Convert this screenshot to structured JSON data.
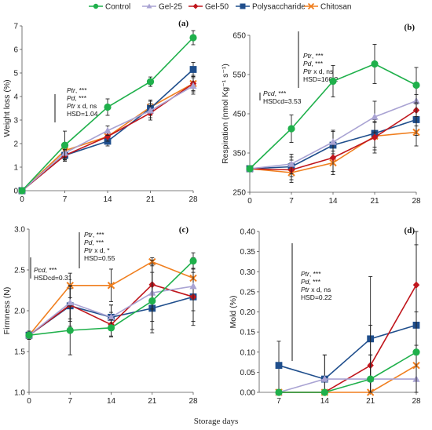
{
  "colors": {
    "Control": "#1fb04b",
    "Gel-25": "#a9a3d3",
    "Gel-50": "#c0161c",
    "Polysaccharide": "#1f4e8c",
    "Chitosan": "#f07f1f"
  },
  "legend": [
    "Control",
    "Gel-25",
    "Gel-50",
    "Polysaccharide",
    "Chitosan"
  ],
  "x_axis_title": "Storage days",
  "chart_data": [
    {
      "panel": "(a)",
      "type": "line",
      "ylabel": "Weight loss (%)",
      "x": [
        0,
        7,
        14,
        21,
        28
      ],
      "xticks": [
        "0",
        "7",
        "14",
        "21",
        "28"
      ],
      "ylim": [
        0,
        7
      ],
      "yticks": [
        "0",
        "1",
        "2",
        "3",
        "4",
        "5",
        "6",
        "7"
      ],
      "series": [
        {
          "name": "Control",
          "values": [
            0,
            1.93,
            3.55,
            4.63,
            6.5
          ],
          "err": [
            0,
            0.6,
            0.35,
            0.2,
            0.3
          ]
        },
        {
          "name": "Gel-25",
          "values": [
            0,
            1.6,
            2.55,
            3.4,
            4.45
          ],
          "err": [
            0,
            0.2,
            0.2,
            0.3,
            0.35
          ]
        },
        {
          "name": "Gel-50",
          "values": [
            0,
            1.5,
            2.3,
            3.3,
            4.55
          ],
          "err": [
            0,
            0.2,
            0.2,
            0.3,
            0.35
          ]
        },
        {
          "name": "Polysaccharide",
          "values": [
            0,
            1.5,
            2.1,
            3.5,
            5.15
          ],
          "err": [
            0,
            0.25,
            0.2,
            0.3,
            0.3
          ]
        },
        {
          "name": "Chitosan",
          "values": [
            0,
            1.7,
            2.3,
            3.55,
            4.55
          ],
          "err": [
            0,
            0.25,
            0.2,
            0.3,
            0.3
          ]
        }
      ],
      "annotations": [
        {
          "lines": [
            "Ptr, ***",
            "Pd, ***",
            "Ptr x d, ns",
            "HSD=1.04"
          ]
        }
      ]
    },
    {
      "panel": "(b)",
      "type": "line",
      "ylabel": "Respiration (nmol Kg⁻¹ s⁻¹)",
      "x": [
        0,
        7,
        14,
        21,
        28
      ],
      "xticks": [
        "0",
        "7",
        "14",
        "21",
        "28"
      ],
      "ylim": [
        250,
        650
      ],
      "yticks": [
        "250",
        "350",
        "450",
        "550",
        "650"
      ],
      "series": [
        {
          "name": "Control",
          "values": [
            310,
            412,
            533,
            577,
            523
          ],
          "err": [
            0,
            35,
            40,
            50,
            45
          ]
        },
        {
          "name": "Gel-25",
          "values": [
            310,
            322,
            378,
            442,
            483
          ],
          "err": [
            0,
            25,
            30,
            40,
            40
          ]
        },
        {
          "name": "Gel-50",
          "values": [
            310,
            307,
            338,
            390,
            459
          ],
          "err": [
            0,
            25,
            35,
            40,
            40
          ]
        },
        {
          "name": "Polysaccharide",
          "values": [
            310,
            315,
            370,
            400,
            435
          ],
          "err": [
            0,
            25,
            35,
            35,
            40
          ]
        },
        {
          "name": "Chitosan",
          "values": [
            310,
            300,
            325,
            393,
            403
          ],
          "err": [
            0,
            25,
            30,
            35,
            35
          ]
        }
      ],
      "annotations": [
        {
          "lines": [
            "Pcd, ***",
            "HSDcd=3.53"
          ]
        },
        {
          "lines": [
            "Ptr, ***",
            "Pd, ***",
            "Ptr x d, ns",
            "HSD=166.2"
          ]
        }
      ]
    },
    {
      "panel": "(c)",
      "type": "line",
      "ylabel": "Firmness (N)",
      "x": [
        0,
        7,
        14,
        21,
        28
      ],
      "xticks": [
        "0",
        "7",
        "14",
        "21",
        "28"
      ],
      "ylim": [
        1.0,
        3.0
      ],
      "yticks": [
        "1.0",
        "1.5",
        "2.0",
        "2.5",
        "3.0"
      ],
      "series": [
        {
          "name": "Control",
          "values": [
            1.7,
            1.76,
            1.79,
            2.12,
            2.61
          ],
          "err": [
            0.05,
            0.3,
            0.1,
            0.35,
            0.1
          ]
        },
        {
          "name": "Gel-25",
          "values": [
            1.7,
            2.1,
            1.92,
            2.22,
            2.3
          ],
          "err": [
            0.05,
            0.2,
            0.15,
            0.35,
            0.3
          ]
        },
        {
          "name": "Gel-50",
          "values": [
            1.7,
            2.07,
            1.83,
            2.32,
            2.17
          ],
          "err": [
            0.05,
            0.2,
            0.15,
            0.3,
            0.3
          ]
        },
        {
          "name": "Polysaccharide",
          "values": [
            1.7,
            2.06,
            1.92,
            2.03,
            2.17
          ],
          "err": [
            0.05,
            0.25,
            0.15,
            0.3,
            0.35
          ]
        },
        {
          "name": "Chitosan",
          "values": [
            1.7,
            2.31,
            2.31,
            2.6,
            2.4
          ],
          "err": [
            0.05,
            0.15,
            0.2,
            0.05,
            0.25
          ]
        }
      ],
      "annotations": [
        {
          "lines": [
            "Pcd, ***",
            "HSDcd=0.31"
          ]
        },
        {
          "lines": [
            "Ptr, ***",
            "Pd, ***",
            "Ptr x d, *",
            "HSD=0.55"
          ]
        }
      ]
    },
    {
      "panel": "(d)",
      "type": "line",
      "ylabel": "Mold (%)",
      "x": [
        7,
        14,
        21,
        28
      ],
      "xticks": [
        "7",
        "14",
        "21",
        "28"
      ],
      "ylim": [
        0,
        0.4
      ],
      "yticks": [
        "0.00",
        "0.05",
        "0.10",
        "0.15",
        "0.20",
        "0.25",
        "0.30",
        "0.35",
        "0.40"
      ],
      "series": [
        {
          "name": "Control",
          "values": [
            0,
            0,
            0.033,
            0.1
          ],
          "err": [
            0,
            0,
            0.06,
            0.1
          ]
        },
        {
          "name": "Gel-25",
          "values": [
            0,
            0.033,
            0.033,
            0.033
          ],
          "err": [
            0,
            0.06,
            0.06,
            0.06
          ]
        },
        {
          "name": "Gel-50",
          "values": [
            0,
            0,
            0.067,
            0.267
          ],
          "err": [
            0,
            0,
            0.1,
            0.15
          ]
        },
        {
          "name": "Polysaccharide",
          "values": [
            0.067,
            0.033,
            0.133,
            0.167
          ],
          "err": [
            0.06,
            0.06,
            0.155,
            0.2
          ]
        },
        {
          "name": "Chitosan",
          "values": [
            0,
            0,
            0,
            0.067
          ],
          "err": [
            0,
            0,
            0,
            0.1
          ]
        }
      ],
      "annotations": [
        {
          "lines": [
            "Ptr, ***",
            "Pd, ***",
            "Ptr x d, ns",
            "HSD=0.22"
          ]
        }
      ]
    }
  ]
}
